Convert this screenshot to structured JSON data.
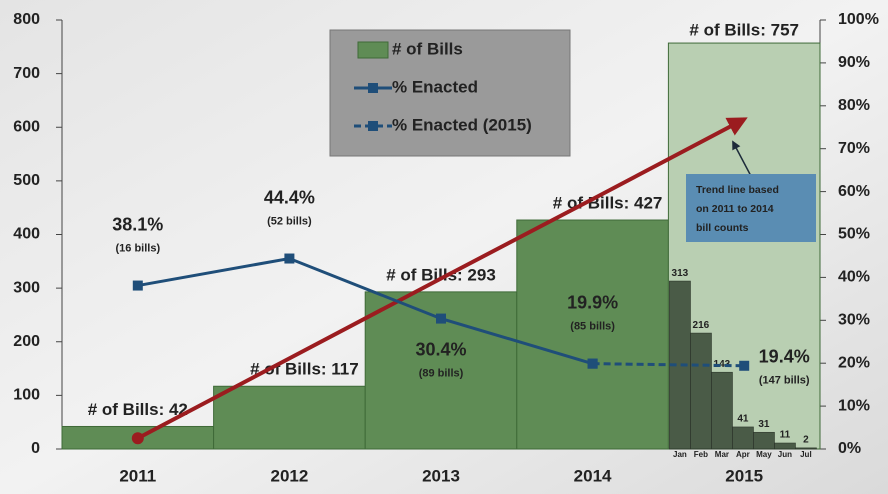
{
  "chart_data": {
    "type": "bar",
    "categories": [
      "2011",
      "2012",
      "2013",
      "2014",
      "2015"
    ],
    "ylim": [
      0,
      800
    ],
    "yticks": [
      0,
      100,
      200,
      300,
      400,
      500,
      600,
      700,
      800
    ],
    "y2lim": [
      0,
      100
    ],
    "y2ticks": [
      {
        "value": 0,
        "label": "0%"
      },
      {
        "value": 10,
        "label": "10%"
      },
      {
        "value": 20,
        "label": "20%"
      },
      {
        "value": 30,
        "label": "30%"
      },
      {
        "value": 40,
        "label": "40%"
      },
      {
        "value": 50,
        "label": "50%"
      },
      {
        "value": 60,
        "label": "60%"
      },
      {
        "value": 70,
        "label": "70%"
      },
      {
        "value": 80,
        "label": "80%"
      },
      {
        "value": 90,
        "label": "90%"
      },
      {
        "value": 100,
        "label": "100%"
      }
    ],
    "series": [
      {
        "name": "# of Bills",
        "type": "bar",
        "color": "#5f8c55",
        "colors": [
          "#5f8c55",
          "#5f8c55",
          "#5f8c55",
          "#5f8c55",
          "#b9cfb2"
        ],
        "values": [
          42,
          117,
          293,
          427,
          757
        ],
        "value_labels": [
          "# of Bills: 42",
          "# of Bills: 117",
          "# of Bills: 293",
          "# of Bills: 427",
          "# of Bills: 757"
        ]
      },
      {
        "name": "% Enacted",
        "type": "line",
        "axis": "y2",
        "color": "#1f4e79",
        "dashed": false,
        "values": [
          38.1,
          44.4,
          30.4,
          19.9,
          null
        ],
        "value_labels": [
          "38.1%",
          "44.4%",
          "30.4%",
          "19.9%",
          null
        ],
        "bill_labels": [
          "(16 bills)",
          "(52 bills)",
          "(89 bills)",
          "(85 bills)",
          null
        ]
      },
      {
        "name": "% Enacted (2015)",
        "type": "line",
        "axis": "y2",
        "color": "#1f4e79",
        "dashed": true,
        "values": [
          null,
          null,
          null,
          19.9,
          19.4
        ],
        "value_labels": [
          null,
          null,
          null,
          null,
          "19.4%"
        ],
        "bill_labels": [
          null,
          null,
          null,
          null,
          "(147 bills)"
        ]
      }
    ],
    "monthly": {
      "categories": [
        "Jan",
        "Feb",
        "Mar",
        "Apr",
        "May",
        "Jun",
        "Jul"
      ],
      "values": [
        313,
        216,
        143,
        41,
        31,
        11,
        2
      ],
      "color": "#3f4f3c"
    },
    "trend": {
      "color": "#9b1c1f",
      "values": [
        20,
        169,
        318,
        466,
        615
      ]
    },
    "annotation": "Trend line based on 2011 to 2014 bill counts"
  }
}
